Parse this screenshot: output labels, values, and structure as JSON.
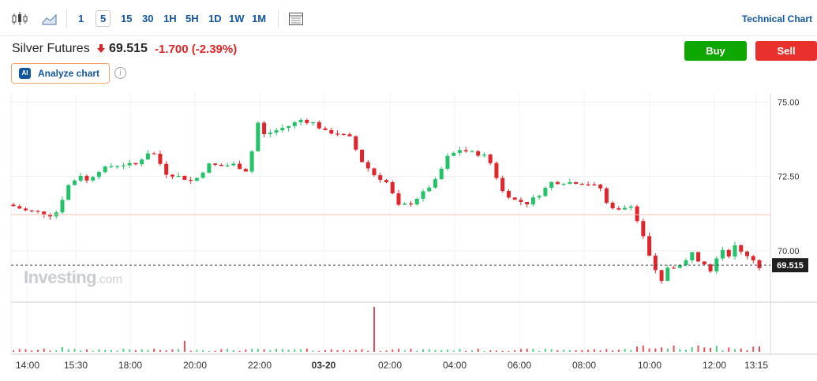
{
  "toolbar": {
    "candle_icon": "candlestick-icon",
    "area_icon": "area-chart-icon",
    "intervals": [
      "1",
      "5",
      "15",
      "30",
      "1H",
      "5H",
      "1D",
      "1W",
      "1M"
    ],
    "active_interval": "5",
    "layout_icon": "layout-icon",
    "technical_chart_label": "Technical Chart"
  },
  "header": {
    "instrument": "Silver Futures",
    "price": "69.515",
    "change": "-1.700",
    "change_pct": "(-2.39%)",
    "direction_icon": "down-arrow-icon",
    "buy_label": "Buy",
    "sell_label": "Sell",
    "analyze_badge": "AI",
    "analyze_label": "Analyze chart",
    "info_icon": "i"
  },
  "watermark": {
    "brand": "Investing",
    "suffix": ".com"
  },
  "colors": {
    "up": "#26c26a",
    "down": "#e0262d",
    "accent": "#1256a0",
    "buy": "#0ea600",
    "sell": "#e8302c"
  },
  "chart_data": {
    "type": "candlestick",
    "x_ticks": [
      "14:00",
      "15:30",
      "18:00",
      "20:00",
      "22:00",
      "03-20",
      "02:00",
      "04:00",
      "06:00",
      "08:00",
      "10:00",
      "12:00",
      "13:15"
    ],
    "y_ticks": [
      "75.00",
      "72.50",
      "70.00"
    ],
    "ylim": [
      68.3,
      75.3
    ],
    "last_price_label": "69.515",
    "last_price": 69.515,
    "reference_price": 71.215,
    "grid": true,
    "close_path": [
      [
        0,
        71.5
      ],
      [
        2,
        71.35
      ],
      [
        4,
        71.3
      ],
      [
        6,
        71.2
      ],
      [
        7,
        71.3
      ],
      [
        9,
        72.2
      ],
      [
        11,
        72.55
      ],
      [
        12,
        72.35
      ],
      [
        14,
        72.7
      ],
      [
        16,
        72.85
      ],
      [
        18,
        72.9
      ],
      [
        20,
        72.9
      ],
      [
        22,
        73.3
      ],
      [
        23,
        73.25
      ],
      [
        25,
        72.6
      ],
      [
        27,
        72.5
      ],
      [
        29,
        72.35
      ],
      [
        30,
        72.45
      ],
      [
        32,
        72.9
      ],
      [
        34,
        72.85
      ],
      [
        36,
        72.9
      ],
      [
        38,
        72.7
      ],
      [
        39,
        73.35
      ],
      [
        40,
        74.3
      ],
      [
        41,
        73.9
      ],
      [
        43,
        74.05
      ],
      [
        45,
        74.2
      ],
      [
        47,
        74.4
      ],
      [
        49,
        74.3
      ],
      [
        51,
        74.0
      ],
      [
        53,
        73.95
      ],
      [
        55,
        73.8
      ],
      [
        57,
        73.0
      ],
      [
        59,
        72.55
      ],
      [
        61,
        72.3
      ],
      [
        63,
        71.5
      ],
      [
        65,
        71.6
      ],
      [
        67,
        71.95
      ],
      [
        69,
        72.35
      ],
      [
        71,
        73.15
      ],
      [
        73,
        73.4
      ],
      [
        75,
        73.3
      ],
      [
        77,
        73.2
      ],
      [
        78,
        72.95
      ],
      [
        80,
        72.0
      ],
      [
        82,
        71.7
      ],
      [
        84,
        71.6
      ],
      [
        86,
        71.9
      ],
      [
        88,
        72.3
      ],
      [
        90,
        72.3
      ],
      [
        92,
        72.3
      ],
      [
        94,
        72.25
      ],
      [
        96,
        72.1
      ],
      [
        97,
        71.6
      ],
      [
        99,
        71.35
      ],
      [
        101,
        71.55
      ],
      [
        102,
        71.0
      ],
      [
        103,
        70.5
      ],
      [
        104,
        69.8
      ],
      [
        105,
        69.3
      ],
      [
        106,
        68.95
      ],
      [
        107,
        69.45
      ],
      [
        109,
        69.5
      ],
      [
        110,
        69.65
      ],
      [
        111,
        70.0
      ],
      [
        112,
        69.7
      ],
      [
        113,
        69.6
      ],
      [
        114,
        69.35
      ],
      [
        115,
        69.8
      ],
      [
        116,
        70.05
      ],
      [
        117,
        69.85
      ],
      [
        118,
        70.15
      ],
      [
        119,
        69.95
      ],
      [
        120,
        69.85
      ],
      [
        121,
        69.7
      ],
      [
        122,
        69.45
      ]
    ]
  }
}
